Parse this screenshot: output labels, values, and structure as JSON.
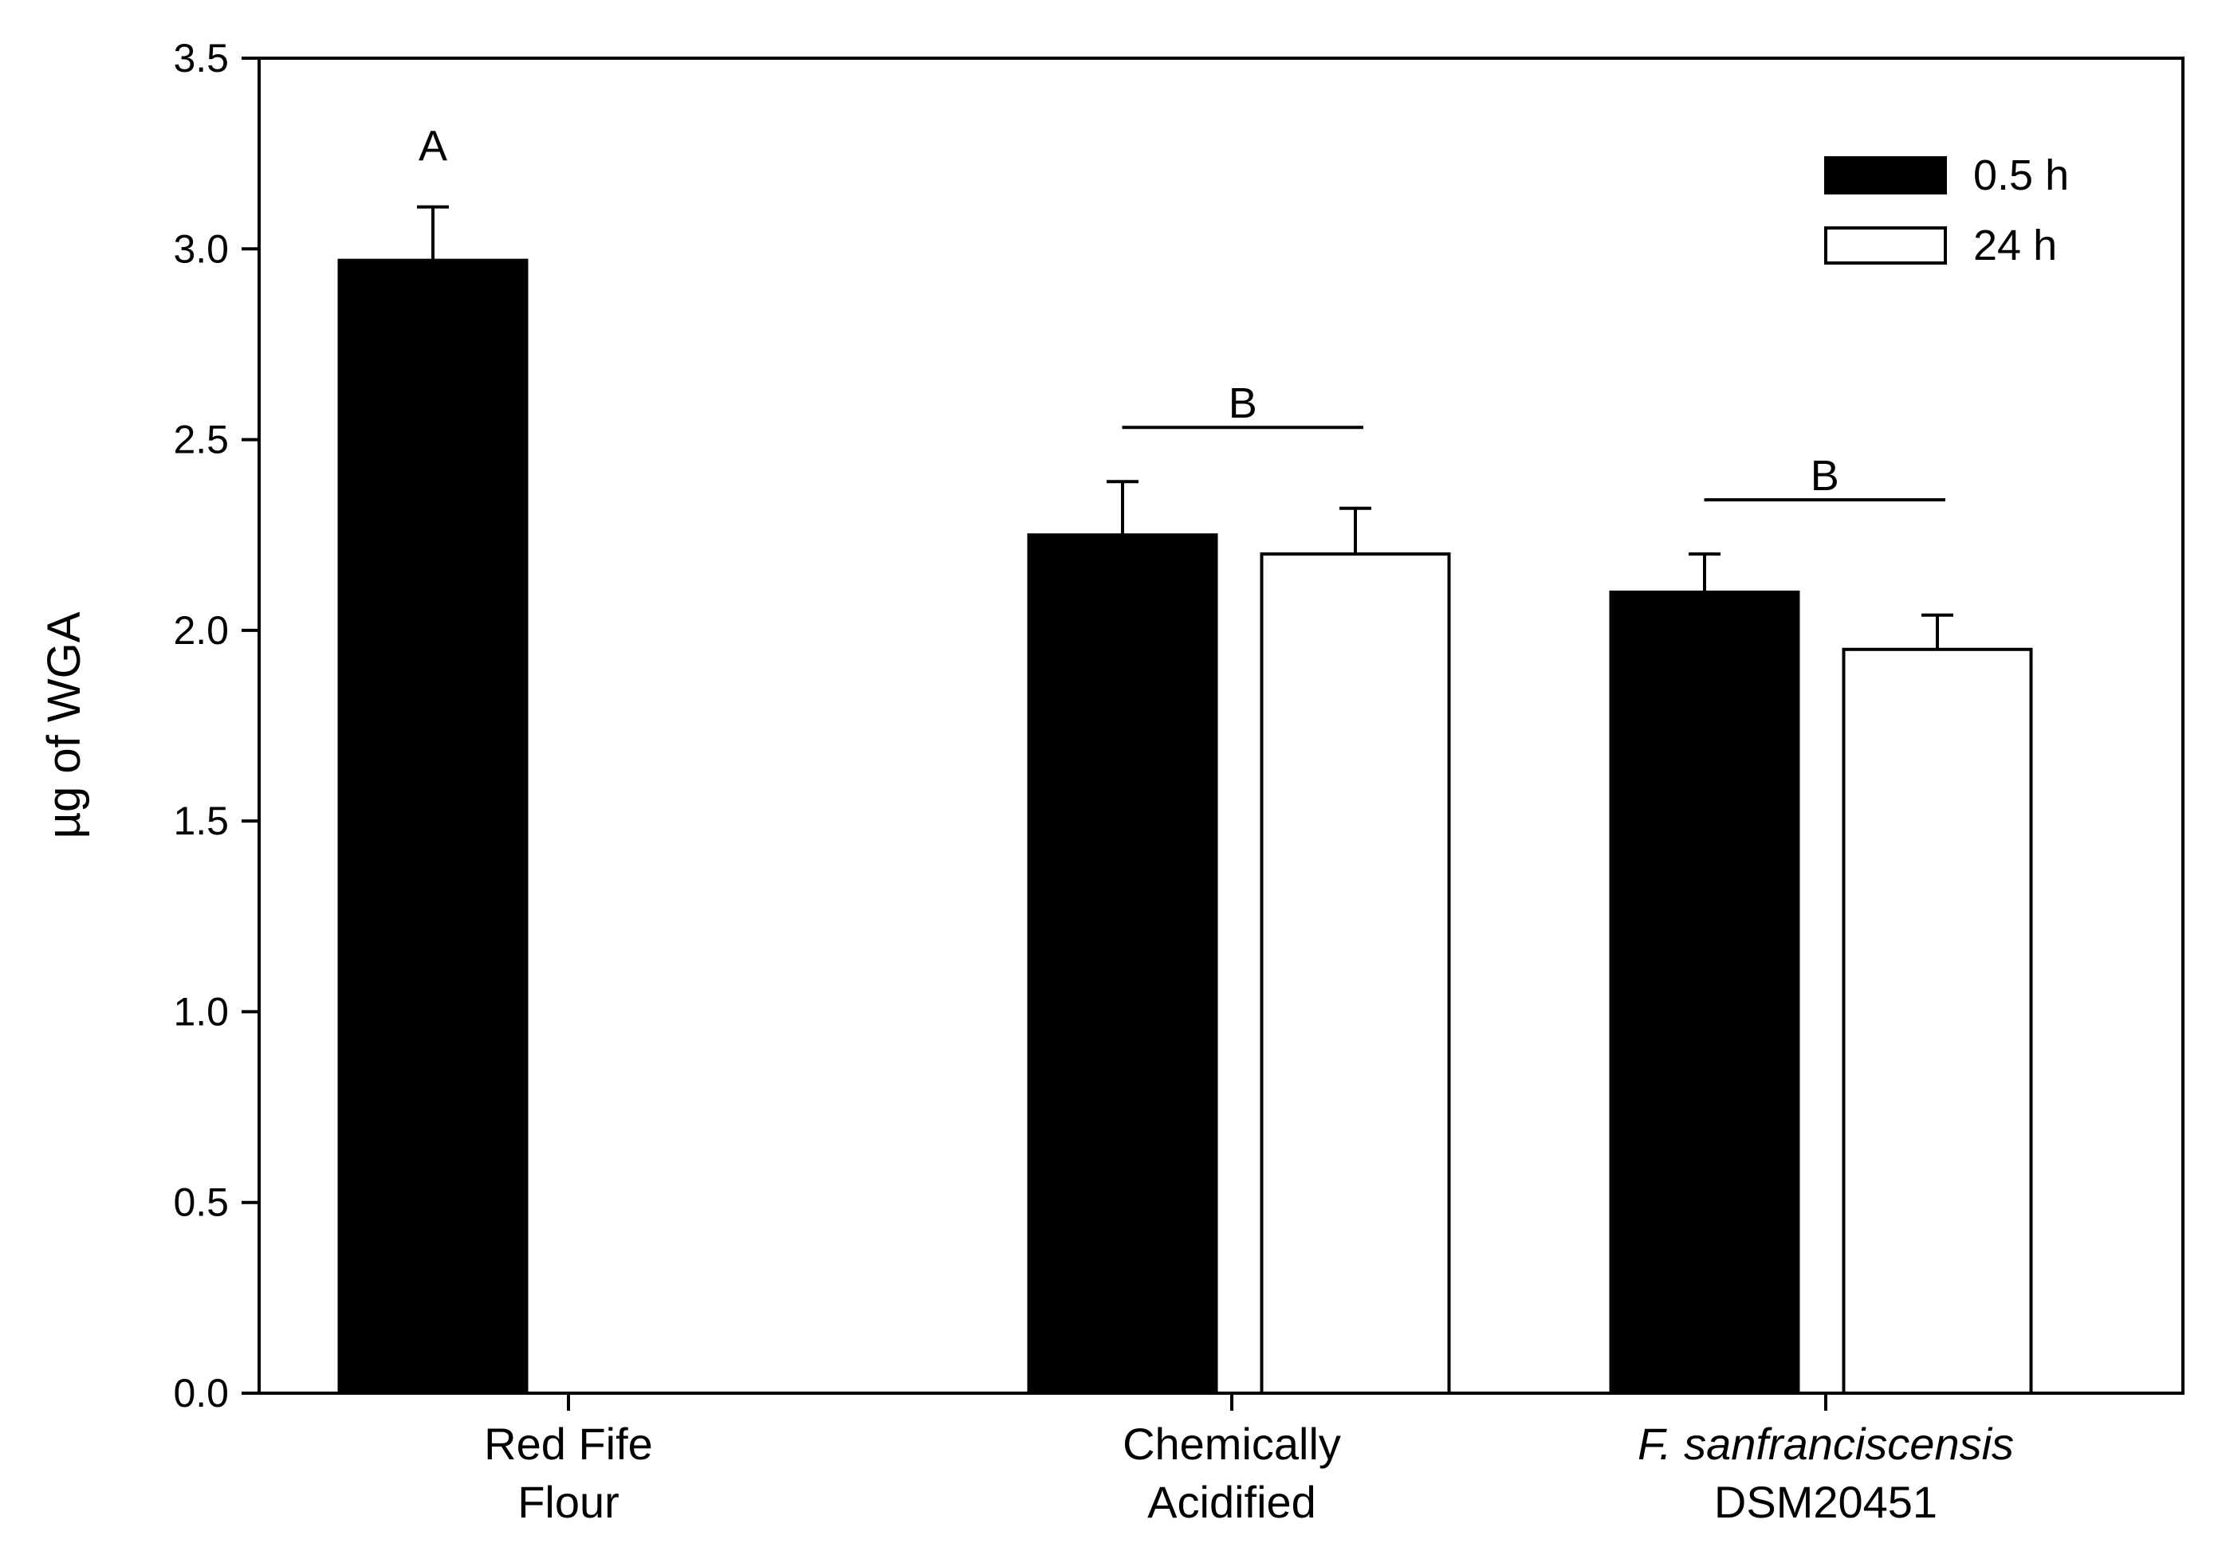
{
  "chart_data": {
    "type": "bar",
    "xlabel": "",
    "ylabel": "µg of WGA",
    "ylim": [
      0,
      3.5
    ],
    "yticks": [
      "0.0",
      "0.5",
      "1.0",
      "1.5",
      "2.0",
      "2.5",
      "3.0",
      "3.5"
    ],
    "ytick_values": [
      0,
      0.5,
      1.0,
      1.5,
      2.0,
      2.5,
      3.0,
      3.5
    ],
    "grid": false,
    "legend_position": "top-right",
    "categories": [
      {
        "line1": "Red Fife",
        "line2": "Flour",
        "line1_italic": false
      },
      {
        "line1": "Chemically",
        "line2": "Acidified",
        "line1_italic": false
      },
      {
        "line1": "F. sanfranciscensis",
        "line2": "DSM20451",
        "line1_italic": true
      }
    ],
    "series": [
      {
        "name": "0.5 h",
        "color": "#000000",
        "values": [
          2.97,
          2.25,
          2.1
        ],
        "errors": [
          0.14,
          0.14,
          0.1
        ]
      },
      {
        "name": "24 h",
        "color": "#ffffff",
        "values": [
          null,
          2.2,
          1.95
        ],
        "errors": [
          null,
          0.12,
          0.09
        ]
      }
    ],
    "annotations": [
      {
        "text": "A",
        "category": 0,
        "bracket": false
      },
      {
        "text": "B",
        "category": 1,
        "bracket": true
      },
      {
        "text": "B",
        "category": 2,
        "bracket": true
      }
    ]
  }
}
